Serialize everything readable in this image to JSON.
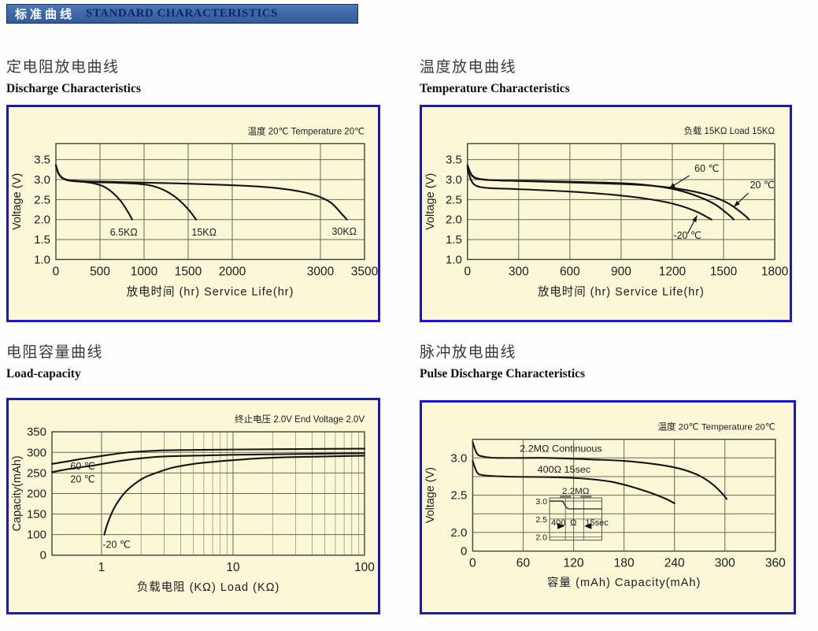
{
  "banner": {
    "title_zh": "标准曲线",
    "title_en": "STANDARD CHARACTERISTICS"
  },
  "sections": [
    {
      "title_zh": "定电阻放电曲线",
      "title_en": "Discharge Characteristics"
    },
    {
      "title_zh": "温度放电曲线",
      "title_en": "Temperature Characteristics"
    },
    {
      "title_zh": "电阻容量曲线",
      "title_en": "Load-capacity"
    },
    {
      "title_zh": "脉冲放电曲线",
      "title_en": "Pulse Discharge Characteristics"
    }
  ],
  "colors": {
    "panel_border": "#1818cf",
    "panel_bg": "#fbf8d8",
    "grid": "#6a6a52",
    "grid_minor": "#8b8b73",
    "plot_border": "#44443a",
    "curve": "#151515",
    "text": "#1c1c1c"
  },
  "chart_data": [
    {
      "type": "line",
      "name": "discharge-characteristics",
      "annotation": "温度 20℃  Temperature 20℃",
      "xlabel": "放电时间 (hr) Service Life(hr)",
      "ylabel": "Voltage (V)",
      "x_axis": {
        "scale": "linear",
        "min": 0,
        "max": 3500,
        "ticks": [
          0,
          500,
          1000,
          1500,
          2000,
          3000,
          3500
        ],
        "labels": [
          "0",
          "500",
          "1000",
          "1500",
          "2000",
          "3000",
          "3500"
        ]
      },
      "y_axis": {
        "scale": "linear",
        "min": 1.0,
        "max": 3.9,
        "ticks": [
          1.0,
          1.5,
          2.0,
          2.5,
          3.0,
          3.5
        ],
        "labels": [
          "1.0",
          "1.5",
          "2.0",
          "2.5",
          "3.0",
          "3.5"
        ]
      },
      "series": [
        {
          "name": "6.5KΩ",
          "points": [
            [
              0,
              3.36
            ],
            [
              25,
              3.18
            ],
            [
              60,
              3.06
            ],
            [
              120,
              2.99
            ],
            [
              200,
              2.96
            ],
            [
              320,
              2.94
            ],
            [
              440,
              2.9
            ],
            [
              540,
              2.83
            ],
            [
              640,
              2.68
            ],
            [
              740,
              2.45
            ],
            [
              820,
              2.18
            ],
            [
              865,
              2.0
            ]
          ]
        },
        {
          "name": "15KΩ",
          "points": [
            [
              0,
              3.36
            ],
            [
              30,
              3.15
            ],
            [
              90,
              3.02
            ],
            [
              200,
              2.97
            ],
            [
              400,
              2.94
            ],
            [
              700,
              2.92
            ],
            [
              950,
              2.89
            ],
            [
              1100,
              2.84
            ],
            [
              1250,
              2.71
            ],
            [
              1380,
              2.52
            ],
            [
              1500,
              2.26
            ],
            [
              1590,
              2.0
            ]
          ]
        },
        {
          "name": "30KΩ",
          "points": [
            [
              0,
              3.36
            ],
            [
              40,
              3.12
            ],
            [
              120,
              3.0
            ],
            [
              300,
              2.96
            ],
            [
              700,
              2.94
            ],
            [
              1300,
              2.91
            ],
            [
              1900,
              2.87
            ],
            [
              2350,
              2.82
            ],
            [
              2700,
              2.73
            ],
            [
              2950,
              2.6
            ],
            [
              3120,
              2.42
            ],
            [
              3250,
              2.12
            ],
            [
              3300,
              2.0
            ]
          ]
        }
      ],
      "curve_labels": [
        {
          "text": "6.5KΩ",
          "x": 770,
          "y": 1.6,
          "anchor": "middle"
        },
        {
          "text": "15KΩ",
          "x": 1680,
          "y": 1.6,
          "anchor": "middle"
        },
        {
          "text": "30KΩ",
          "x": 3270,
          "y": 1.62,
          "anchor": "middle"
        }
      ]
    },
    {
      "type": "line",
      "name": "temperature-characteristics",
      "annotation": "负载 15KΩ  Load 15KΩ",
      "xlabel": "放电时间 (hr) Service Life(hr)",
      "ylabel": "Voltage (V)",
      "x_axis": {
        "scale": "linear",
        "min": 0,
        "max": 1800,
        "ticks": [
          0,
          300,
          600,
          900,
          1200,
          1500,
          1800
        ],
        "labels": [
          "0",
          "300",
          "600",
          "900",
          "1200",
          "1500",
          "1800"
        ]
      },
      "y_axis": {
        "scale": "linear",
        "min": 1.0,
        "max": 3.9,
        "ticks": [
          1.0,
          1.5,
          2.0,
          2.5,
          3.0,
          3.5
        ],
        "labels": [
          "1.0",
          "1.5",
          "2.0",
          "2.5",
          "3.0",
          "3.5"
        ]
      },
      "series": [
        {
          "name": "60 ℃",
          "points": [
            [
              0,
              3.36
            ],
            [
              25,
              3.12
            ],
            [
              70,
              3.02
            ],
            [
              180,
              2.98
            ],
            [
              450,
              2.96
            ],
            [
              750,
              2.93
            ],
            [
              950,
              2.9
            ],
            [
              1100,
              2.84
            ],
            [
              1230,
              2.74
            ],
            [
              1350,
              2.58
            ],
            [
              1450,
              2.38
            ],
            [
              1530,
              2.12
            ],
            [
              1560,
              2.0
            ]
          ]
        },
        {
          "name": "20 ℃",
          "points": [
            [
              0,
              3.36
            ],
            [
              30,
              3.08
            ],
            [
              90,
              3.0
            ],
            [
              250,
              2.97
            ],
            [
              600,
              2.93
            ],
            [
              900,
              2.89
            ],
            [
              1100,
              2.84
            ],
            [
              1280,
              2.74
            ],
            [
              1420,
              2.6
            ],
            [
              1530,
              2.4
            ],
            [
              1620,
              2.12
            ],
            [
              1650,
              2.0
            ]
          ]
        },
        {
          "name": "-20 ℃",
          "points": [
            [
              0,
              3.3
            ],
            [
              20,
              3.0
            ],
            [
              50,
              2.85
            ],
            [
              120,
              2.79
            ],
            [
              300,
              2.76
            ],
            [
              600,
              2.7
            ],
            [
              850,
              2.62
            ],
            [
              1050,
              2.52
            ],
            [
              1200,
              2.4
            ],
            [
              1330,
              2.22
            ],
            [
              1430,
              2.0
            ]
          ]
        }
      ],
      "curve_labels": [
        {
          "text": "60 ℃",
          "x": 1330,
          "y": 3.2,
          "anchor": "start",
          "arrow": [
            1300,
            3.1,
            1180,
            2.78
          ]
        },
        {
          "text": "20 ℃",
          "x": 1655,
          "y": 2.78,
          "anchor": "start",
          "arrow": [
            1645,
            2.66,
            1560,
            2.32
          ]
        },
        {
          "text": "-20 ℃",
          "x": 1207,
          "y": 1.52,
          "anchor": "start",
          "arrow": [
            1290,
            1.65,
            1345,
            2.1
          ]
        }
      ]
    },
    {
      "type": "line",
      "name": "load-capacity",
      "annotation": "终止电压 2.0V End Voltage 2.0V",
      "xlabel": "负载电阻 (KΩ) Load (KΩ)",
      "ylabel": "Capacity(mAh)",
      "x_axis": {
        "scale": "log",
        "min": 0.42,
        "max": 100,
        "ticks": [
          1,
          10,
          100
        ],
        "labels": [
          "1",
          "10",
          "100"
        ],
        "minor": [
          2,
          3,
          4,
          5,
          6,
          7,
          8,
          9,
          20,
          30,
          40,
          50,
          60,
          70,
          80,
          90
        ]
      },
      "y_axis": {
        "scale": "even",
        "ticks": [
          0,
          100,
          150,
          200,
          250,
          300,
          350
        ],
        "labels": [
          "0",
          "100",
          "150",
          "200",
          "250",
          "300",
          "350"
        ]
      },
      "series": [
        {
          "name": "60 ℃",
          "points": [
            [
              0.42,
              272
            ],
            [
              0.55,
              278
            ],
            [
              0.7,
              284
            ],
            [
              0.9,
              289
            ],
            [
              1.2,
              295
            ],
            [
              1.6,
              300
            ],
            [
              2.2,
              303
            ],
            [
              3,
              305
            ],
            [
              5,
              306
            ],
            [
              10,
              307
            ],
            [
              30,
              308
            ],
            [
              100,
              309
            ]
          ]
        },
        {
          "name": "20 ℃",
          "points": [
            [
              0.42,
              252
            ],
            [
              0.55,
              259
            ],
            [
              0.7,
              264
            ],
            [
              0.9,
              269
            ],
            [
              1.2,
              276
            ],
            [
              1.6,
              282
            ],
            [
              2.2,
              287
            ],
            [
              3,
              290
            ],
            [
              5,
              292
            ],
            [
              10,
              294
            ],
            [
              30,
              296
            ],
            [
              100,
              298
            ]
          ]
        },
        {
          "name": "-20 ℃",
          "points": [
            [
              1.05,
              100
            ],
            [
              1.12,
              130
            ],
            [
              1.25,
              165
            ],
            [
              1.45,
              196
            ],
            [
              1.7,
              218
            ],
            [
              2.1,
              238
            ],
            [
              2.7,
              252
            ],
            [
              3.5,
              263
            ],
            [
              5,
              272
            ],
            [
              7,
              277
            ],
            [
              10,
              281
            ],
            [
              15,
              285
            ],
            [
              25,
              288
            ],
            [
              50,
              290
            ],
            [
              100,
              292
            ]
          ]
        }
      ],
      "curve_labels": [
        {
          "text": "60 ℃",
          "x": 0.58,
          "y": 258,
          "anchor": "start"
        },
        {
          "text": "20 ℃",
          "x": 0.58,
          "y": 227,
          "anchor": "start"
        },
        {
          "text": "-20 ℃",
          "x": 1.02,
          "y": 35,
          "anchor": "start"
        }
      ]
    },
    {
      "type": "line",
      "name": "pulse-discharge-characteristics",
      "annotation": "温度 20℃ Temperature 20℃",
      "xlabel": "容量 (mAh) Capacity(mAh)",
      "ylabel": "Voltage (V)",
      "x_axis": {
        "scale": "linear",
        "min": 0,
        "max": 360,
        "ticks": [
          0,
          60,
          120,
          180,
          240,
          300,
          360
        ],
        "labels": [
          "0",
          "60",
          "120",
          "180",
          "240",
          "300",
          "360"
        ]
      },
      "y_axis": {
        "scale": "even",
        "ticks": [
          0,
          2.0,
          2.25,
          2.5,
          2.75,
          3.0,
          3.25
        ],
        "labels": [
          "0",
          "2.0",
          "",
          "2.5",
          "",
          "3.0",
          ""
        ]
      },
      "series": [
        {
          "name": "2.2MΩ Continuous",
          "points": [
            [
              0,
              3.21
            ],
            [
              5,
              3.06
            ],
            [
              12,
              3.02
            ],
            [
              30,
              3.0
            ],
            [
              90,
              3.0
            ],
            [
              140,
              2.98
            ],
            [
              180,
              2.96
            ],
            [
              215,
              2.92
            ],
            [
              245,
              2.86
            ],
            [
              268,
              2.77
            ],
            [
              285,
              2.65
            ],
            [
              297,
              2.52
            ],
            [
              302,
              2.45
            ]
          ]
        },
        {
          "name": "400Ω 15sec",
          "points": [
            [
              0,
              2.96
            ],
            [
              5,
              2.81
            ],
            [
              12,
              2.77
            ],
            [
              40,
              2.75
            ],
            [
              100,
              2.74
            ],
            [
              135,
              2.72
            ],
            [
              165,
              2.68
            ],
            [
              190,
              2.61
            ],
            [
              212,
              2.53
            ],
            [
              230,
              2.45
            ],
            [
              240,
              2.39
            ]
          ]
        }
      ],
      "curve_labels": [
        {
          "text": "2.2MΩ Continuous",
          "x": 56,
          "y": 3.08,
          "anchor": "start"
        },
        {
          "text": "400Ω 15sec",
          "x": 77,
          "y": 2.8,
          "anchor": "start"
        }
      ],
      "inset": {
        "label_top": "2.2MΩ",
        "ticks": [
          "3.0",
          "2.5",
          "2.0"
        ],
        "pulse_label": [
          "400",
          "Ω",
          "15sec"
        ]
      }
    }
  ]
}
